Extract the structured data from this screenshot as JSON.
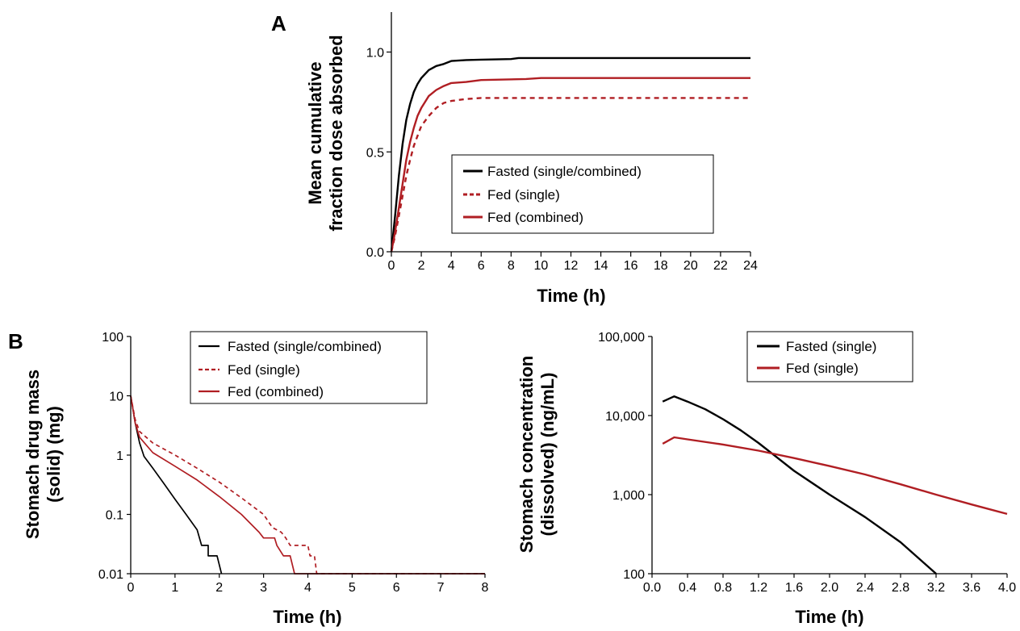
{
  "figure": {
    "panel_a_label": "A",
    "panel_b_label": "B"
  },
  "colors": {
    "fasted": "#000000",
    "fed": "#b01e23"
  },
  "chart_data": [
    {
      "type": "line",
      "panel": "A",
      "xlabel": "Time (h)",
      "ylabel_line1": "Mean cumulative",
      "ylabel_line2": "fraction dose absorbed",
      "xlim": [
        0,
        24
      ],
      "ylim": [
        0,
        1.2
      ],
      "x_ticks": [
        0,
        2,
        4,
        6,
        8,
        10,
        12,
        14,
        16,
        18,
        20,
        22,
        24
      ],
      "x_tick_labels": [
        "0",
        "2",
        "4",
        "6",
        "8",
        "10",
        "12",
        "14",
        "16",
        "18",
        "20",
        "22",
        "24"
      ],
      "y_ticks": [
        0,
        0.5,
        1.0
      ],
      "y_tick_labels": [
        "0.0",
        "0.5",
        "1.0"
      ],
      "legend_position": "center-right",
      "series": [
        {
          "name": "Fasted (single/combined)",
          "color": "#000000",
          "dash": "solid",
          "points": [
            [
              0,
              0
            ],
            [
              0.25,
              0.18
            ],
            [
              0.5,
              0.38
            ],
            [
              0.75,
              0.54
            ],
            [
              1,
              0.66
            ],
            [
              1.25,
              0.74
            ],
            [
              1.5,
              0.8
            ],
            [
              1.75,
              0.84
            ],
            [
              2,
              0.87
            ],
            [
              2.5,
              0.91
            ],
            [
              3,
              0.93
            ],
            [
              3.5,
              0.94
            ],
            [
              4,
              0.955
            ],
            [
              5,
              0.96
            ],
            [
              6,
              0.962
            ],
            [
              8,
              0.965
            ],
            [
              8.5,
              0.97
            ],
            [
              12,
              0.97
            ],
            [
              16,
              0.97
            ],
            [
              24,
              0.97
            ]
          ]
        },
        {
          "name": "Fed (single)",
          "color": "#b01e23",
          "dash": "dashed",
          "points": [
            [
              0,
              0
            ],
            [
              0.25,
              0.08
            ],
            [
              0.5,
              0.18
            ],
            [
              0.75,
              0.28
            ],
            [
              1,
              0.38
            ],
            [
              1.25,
              0.46
            ],
            [
              1.5,
              0.53
            ],
            [
              1.75,
              0.58
            ],
            [
              2,
              0.63
            ],
            [
              2.5,
              0.68
            ],
            [
              3,
              0.72
            ],
            [
              3.5,
              0.745
            ],
            [
              4,
              0.755
            ],
            [
              5,
              0.765
            ],
            [
              6,
              0.77
            ],
            [
              8,
              0.77
            ],
            [
              12,
              0.77
            ],
            [
              24,
              0.77
            ]
          ]
        },
        {
          "name": "Fed (combined)",
          "color": "#b01e23",
          "dash": "solid",
          "points": [
            [
              0,
              0
            ],
            [
              0.25,
              0.1
            ],
            [
              0.5,
              0.22
            ],
            [
              0.75,
              0.34
            ],
            [
              1,
              0.46
            ],
            [
              1.25,
              0.55
            ],
            [
              1.5,
              0.62
            ],
            [
              1.75,
              0.68
            ],
            [
              2,
              0.72
            ],
            [
              2.5,
              0.78
            ],
            [
              3,
              0.81
            ],
            [
              3.5,
              0.83
            ],
            [
              4,
              0.845
            ],
            [
              5,
              0.85
            ],
            [
              6,
              0.86
            ],
            [
              9,
              0.865
            ],
            [
              10,
              0.87
            ],
            [
              16,
              0.87
            ],
            [
              24,
              0.87
            ]
          ]
        }
      ]
    },
    {
      "type": "line",
      "panel": "B-left",
      "scale_y": "log",
      "xlabel": "Time (h)",
      "ylabel_line1": "Stomach drug mass",
      "ylabel_line2": "(solid) (mg)",
      "xlim": [
        0,
        8
      ],
      "ylim": [
        0.01,
        100
      ],
      "x_ticks": [
        0,
        1,
        2,
        3,
        4,
        5,
        6,
        7,
        8
      ],
      "x_tick_labels": [
        "0",
        "1",
        "2",
        "3",
        "4",
        "5",
        "6",
        "7",
        "8"
      ],
      "y_ticks": [
        0.01,
        0.1,
        1,
        10,
        100
      ],
      "y_tick_labels": [
        "0.01",
        "0.1",
        "1",
        "10",
        "100"
      ],
      "legend_position": "top-right",
      "series": [
        {
          "name": "Fasted (single/combined)",
          "color": "#000000",
          "dash": "solid",
          "points": [
            [
              0,
              10
            ],
            [
              0.1,
              3.5
            ],
            [
              0.2,
              1.6
            ],
            [
              0.3,
              0.95
            ],
            [
              0.5,
              0.6
            ],
            [
              0.75,
              0.33
            ],
            [
              1,
              0.18
            ],
            [
              1.25,
              0.1
            ],
            [
              1.5,
              0.055
            ],
            [
              1.6,
              0.03
            ],
            [
              1.75,
              0.03
            ],
            [
              1.75,
              0.02
            ],
            [
              1.95,
              0.02
            ],
            [
              2.05,
              0.01
            ]
          ]
        },
        {
          "name": "Fed (single)",
          "color": "#b01e23",
          "dash": "dashed",
          "points": [
            [
              0,
              10
            ],
            [
              0.1,
              4.0
            ],
            [
              0.2,
              2.5
            ],
            [
              0.5,
              1.6
            ],
            [
              1,
              1.0
            ],
            [
              1.5,
              0.6
            ],
            [
              2,
              0.35
            ],
            [
              2.5,
              0.19
            ],
            [
              3,
              0.1
            ],
            [
              3.2,
              0.06
            ],
            [
              3.4,
              0.05
            ],
            [
              3.5,
              0.04
            ],
            [
              3.6,
              0.03
            ],
            [
              4.0,
              0.03
            ],
            [
              4.05,
              0.02
            ],
            [
              4.15,
              0.02
            ],
            [
              4.2,
              0.01
            ],
            [
              8,
              0.01
            ]
          ]
        },
        {
          "name": "Fed (combined)",
          "color": "#b01e23",
          "dash": "solid",
          "points": [
            [
              0,
              10
            ],
            [
              0.1,
              3.5
            ],
            [
              0.2,
              2.0
            ],
            [
              0.5,
              1.1
            ],
            [
              1,
              0.65
            ],
            [
              1.5,
              0.38
            ],
            [
              2,
              0.2
            ],
            [
              2.5,
              0.1
            ],
            [
              2.9,
              0.05
            ],
            [
              3.0,
              0.04
            ],
            [
              3.25,
              0.04
            ],
            [
              3.3,
              0.03
            ],
            [
              3.45,
              0.02
            ],
            [
              3.6,
              0.02
            ],
            [
              3.7,
              0.01
            ],
            [
              8,
              0.01
            ]
          ]
        }
      ]
    },
    {
      "type": "line",
      "panel": "B-right",
      "scale_y": "log",
      "xlabel": "Time (h)",
      "ylabel_line1": "Stomach concentration",
      "ylabel_line2": "(dissolved) (ng/mL)",
      "xlim": [
        0,
        4
      ],
      "ylim": [
        100,
        100000
      ],
      "x_ticks": [
        0,
        0.4,
        0.8,
        1.2,
        1.6,
        2.0,
        2.4,
        2.8,
        3.2,
        3.6,
        4.0
      ],
      "x_tick_labels": [
        "0.0",
        "0.4",
        "0.8",
        "1.2",
        "1.6",
        "2.0",
        "2.4",
        "2.8",
        "3.2",
        "3.6",
        "4.0"
      ],
      "y_ticks": [
        100,
        1000,
        10000,
        100000
      ],
      "y_tick_labels": [
        "100",
        "1,000",
        "10,000",
        "100,000"
      ],
      "legend_position": "top-right",
      "series": [
        {
          "name": "Fasted (single)",
          "color": "#000000",
          "dash": "solid",
          "points": [
            [
              0.12,
              15000
            ],
            [
              0.25,
              17500
            ],
            [
              0.4,
              15000
            ],
            [
              0.6,
              12000
            ],
            [
              0.8,
              9000
            ],
            [
              1.0,
              6500
            ],
            [
              1.2,
              4500
            ],
            [
              1.4,
              3000
            ],
            [
              1.6,
              2000
            ],
            [
              2.0,
              1000
            ],
            [
              2.4,
              520
            ],
            [
              2.8,
              250
            ],
            [
              3.2,
              100
            ]
          ]
        },
        {
          "name": "Fed (single)",
          "color": "#b01e23",
          "dash": "solid",
          "points": [
            [
              0.12,
              4400
            ],
            [
              0.25,
              5300
            ],
            [
              0.4,
              5000
            ],
            [
              0.8,
              4300
            ],
            [
              1.2,
              3600
            ],
            [
              1.6,
              2900
            ],
            [
              2.0,
              2300
            ],
            [
              2.4,
              1800
            ],
            [
              2.8,
              1350
            ],
            [
              3.2,
              1000
            ],
            [
              3.6,
              750
            ],
            [
              4.0,
              570
            ]
          ]
        }
      ]
    }
  ]
}
